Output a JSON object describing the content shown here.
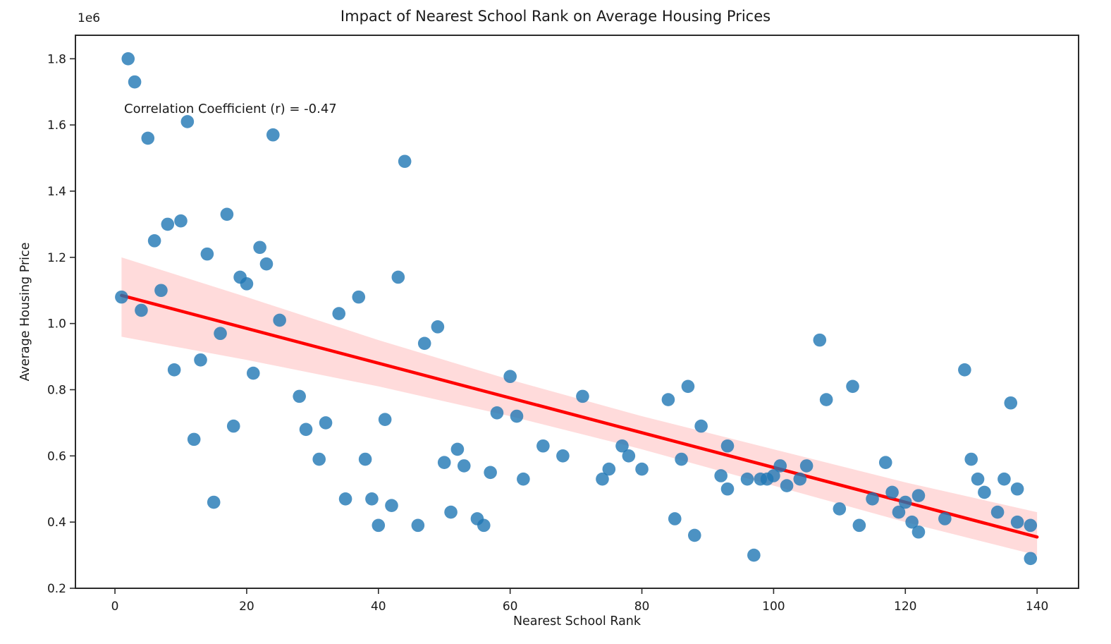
{
  "figure": {
    "kind": "matplotlib-scatter-figure",
    "background": "#ffffff"
  },
  "chart_data": {
    "type": "scatter",
    "title": "Impact of Nearest School Rank on Average Housing Prices",
    "xlabel": "Nearest School Rank",
    "ylabel": "Average Housing Price",
    "annotation": "Correlation Coefficient (r) = -0.47",
    "correlation_r": -0.47,
    "y_offset_label": "1e6",
    "y_unit_multiplier": 1000000,
    "xlim": [
      -6,
      146.3
    ],
    "ylim": [
      0.2,
      1.871
    ],
    "xticks": [
      0,
      20,
      40,
      60,
      80,
      100,
      120,
      140
    ],
    "yticks": [
      0.2,
      0.4,
      0.6,
      0.8,
      1.0,
      1.2,
      1.4,
      1.6,
      1.8
    ],
    "grid": false,
    "legend": null,
    "points": [
      [
        2,
        1.8
      ],
      [
        3,
        1.73
      ],
      [
        11,
        1.61
      ],
      [
        5,
        1.56
      ],
      [
        24,
        1.57
      ],
      [
        44,
        1.49
      ],
      [
        17,
        1.33
      ],
      [
        10,
        1.31
      ],
      [
        8,
        1.3
      ],
      [
        6,
        1.25
      ],
      [
        14,
        1.21
      ],
      [
        22,
        1.23
      ],
      [
        23,
        1.18
      ],
      [
        19,
        1.14
      ],
      [
        20,
        1.12
      ],
      [
        43,
        1.14
      ],
      [
        1,
        1.08
      ],
      [
        7,
        1.1
      ],
      [
        4,
        1.04
      ],
      [
        25,
        1.01
      ],
      [
        37,
        1.08
      ],
      [
        34,
        1.03
      ],
      [
        16,
        0.97
      ],
      [
        47,
        0.94
      ],
      [
        49,
        0.99
      ],
      [
        13,
        0.89
      ],
      [
        9,
        0.86
      ],
      [
        21,
        0.85
      ],
      [
        28,
        0.78
      ],
      [
        18,
        0.69
      ],
      [
        29,
        0.68
      ],
      [
        32,
        0.7
      ],
      [
        41,
        0.71
      ],
      [
        12,
        0.65
      ],
      [
        60,
        0.84
      ],
      [
        71,
        0.78
      ],
      [
        58,
        0.73
      ],
      [
        61,
        0.72
      ],
      [
        84,
        0.77
      ],
      [
        87,
        0.81
      ],
      [
        89,
        0.69
      ],
      [
        65,
        0.63
      ],
      [
        107,
        0.95
      ],
      [
        129,
        0.86
      ],
      [
        112,
        0.81
      ],
      [
        108,
        0.77
      ],
      [
        136,
        0.76
      ],
      [
        15,
        0.46
      ],
      [
        31,
        0.59
      ],
      [
        38,
        0.59
      ],
      [
        35,
        0.47
      ],
      [
        39,
        0.47
      ],
      [
        42,
        0.45
      ],
      [
        40,
        0.39
      ],
      [
        46,
        0.39
      ],
      [
        52,
        0.62
      ],
      [
        50,
        0.58
      ],
      [
        53,
        0.57
      ],
      [
        57,
        0.55
      ],
      [
        62,
        0.53
      ],
      [
        68,
        0.6
      ],
      [
        74,
        0.53
      ],
      [
        75,
        0.56
      ],
      [
        77,
        0.63
      ],
      [
        78,
        0.6
      ],
      [
        80,
        0.56
      ],
      [
        86,
        0.59
      ],
      [
        92,
        0.54
      ],
      [
        93,
        0.5
      ],
      [
        93,
        0.63
      ],
      [
        51,
        0.43
      ],
      [
        55,
        0.41
      ],
      [
        56,
        0.39
      ],
      [
        85,
        0.41
      ],
      [
        88,
        0.36
      ],
      [
        97,
        0.3
      ],
      [
        96,
        0.53
      ],
      [
        98,
        0.53
      ],
      [
        99,
        0.53
      ],
      [
        100,
        0.54
      ],
      [
        101,
        0.57
      ],
      [
        102,
        0.51
      ],
      [
        104,
        0.53
      ],
      [
        105,
        0.57
      ],
      [
        117,
        0.58
      ],
      [
        115,
        0.47
      ],
      [
        118,
        0.49
      ],
      [
        120,
        0.46
      ],
      [
        119,
        0.43
      ],
      [
        121,
        0.4
      ],
      [
        122,
        0.48
      ],
      [
        122,
        0.37
      ],
      [
        110,
        0.44
      ],
      [
        113,
        0.39
      ],
      [
        126,
        0.41
      ],
      [
        130,
        0.59
      ],
      [
        131,
        0.53
      ],
      [
        132,
        0.49
      ],
      [
        135,
        0.53
      ],
      [
        137,
        0.5
      ],
      [
        134,
        0.43
      ],
      [
        137,
        0.4
      ],
      [
        139,
        0.39
      ],
      [
        139,
        0.29
      ]
    ],
    "regression_line": {
      "x": [
        1,
        140
      ],
      "y": [
        1.085,
        0.355
      ]
    },
    "confidence_band": {
      "x": [
        1,
        20,
        40,
        60,
        80,
        100,
        120,
        140
      ],
      "top": [
        1.2,
        1.08,
        0.95,
        0.83,
        0.72,
        0.62,
        0.52,
        0.43
      ],
      "bottom": [
        0.96,
        0.89,
        0.81,
        0.72,
        0.62,
        0.51,
        0.4,
        0.3
      ]
    },
    "colors": {
      "marker": "#1f77b4",
      "marker_opacity": 0.8,
      "regression_line": "#ff0000",
      "band_fill": "#ff0000",
      "band_opacity": 0.14,
      "text": "#1a1a1a",
      "spine": "#2b2b2b"
    }
  }
}
